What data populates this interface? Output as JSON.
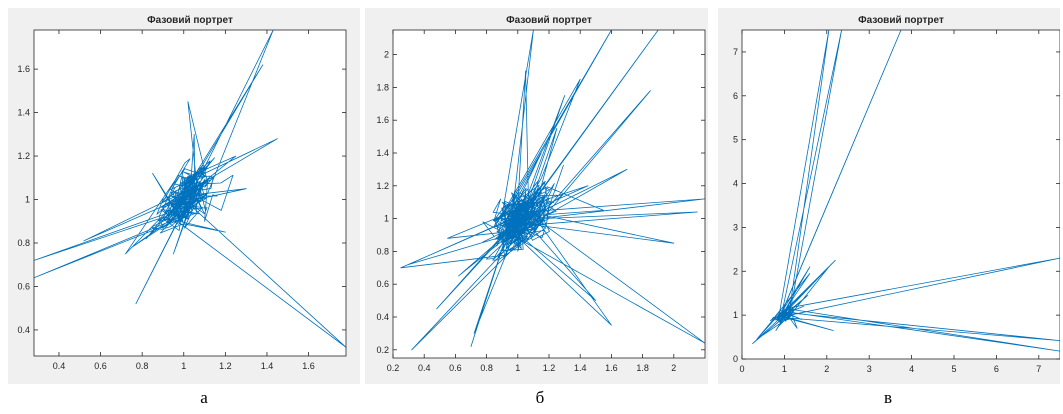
{
  "captions": [
    "а",
    "б",
    "в"
  ],
  "chart_data": [
    {
      "type": "line",
      "title": "Фазовий портрет",
      "xlabel": "",
      "ylabel": "",
      "xlim": [
        0.28,
        1.78
      ],
      "ylim": [
        0.28,
        1.78
      ],
      "xticks": [
        0.4,
        0.6,
        0.8,
        1,
        1.2,
        1.4,
        1.6
      ],
      "xtick_labels": [
        "0.4",
        "0.6",
        "0.8",
        "1",
        "1.2",
        "1.4",
        "1.6"
      ],
      "yticks": [
        0.4,
        0.6,
        0.8,
        1,
        1.2,
        1.4,
        1.6
      ],
      "ytick_labels": [
        "0.4",
        "0.6",
        "0.8",
        "1",
        "1.2",
        "1.4",
        "1.6"
      ],
      "grid": false,
      "line_color": "#0072bd",
      "cluster": {
        "center": [
          1.02,
          1.01
        ],
        "spread": [
          0.11,
          0.1
        ],
        "count": 260,
        "corr": 0.55,
        "seed": 7
      },
      "excursions": [
        [
          0.92,
          0.95
        ],
        [
          1.02,
          1.45
        ],
        [
          1.45,
          1.28
        ],
        [
          1.3,
          1.05
        ],
        [
          1.2,
          0.85
        ],
        [
          0.92,
          0.9
        ],
        [
          0.85,
          1.12
        ],
        [
          1.05,
          1.3
        ],
        [
          1.25,
          1.2
        ],
        [
          1.1,
          0.9
        ],
        [
          0.82,
          0.82
        ],
        [
          0.95,
          0.75
        ],
        [
          1.18,
          0.95
        ],
        [
          1.0,
          1.1
        ],
        [
          0.52,
          0.81
        ],
        [
          0.77,
          0.52
        ],
        [
          0.72,
          0.75
        ],
        [
          0.28,
          0.72
        ],
        [
          0.75,
          0.78
        ],
        [
          1.38,
          1.62
        ],
        [
          1.43,
          1.78
        ],
        [
          1.02,
          1.02
        ],
        [
          0.28,
          0.64
        ],
        [
          1.78,
          0.32
        ],
        [
          0.9,
          1.0
        ]
      ]
    },
    {
      "type": "line",
      "title": "Фазовий портрет",
      "xlabel": "",
      "ylabel": "",
      "xlim": [
        0.2,
        2.2
      ],
      "ylim": [
        0.15,
        2.15
      ],
      "xticks": [
        0.2,
        0.4,
        0.6,
        0.8,
        1,
        1.2,
        1.4,
        1.6,
        1.8,
        2
      ],
      "xtick_labels": [
        "0.2",
        "0.4",
        "0.6",
        "0.8",
        "1",
        "1.2",
        "1.4",
        "1.6",
        "1.8",
        "2"
      ],
      "yticks": [
        0.2,
        0.4,
        0.6,
        0.8,
        1,
        1.2,
        1.4,
        1.6,
        1.8,
        2
      ],
      "ytick_labels": [
        "0.2",
        "0.4",
        "0.6",
        "0.8",
        "1",
        "1.2",
        "1.4",
        "1.6",
        "1.8",
        "2"
      ],
      "grid": false,
      "line_color": "#0072bd",
      "cluster": {
        "center": [
          1.02,
          1.0
        ],
        "spread": [
          0.16,
          0.15
        ],
        "count": 380,
        "corr": 0.6,
        "seed": 11
      },
      "excursions": [
        [
          0.85,
          0.95
        ],
        [
          1.1,
          2.15
        ],
        [
          1.15,
          1.4
        ],
        [
          1.6,
          2.15
        ],
        [
          1.9,
          2.15
        ],
        [
          2.0,
          0.85
        ],
        [
          1.4,
          1.85
        ],
        [
          1.85,
          1.78
        ],
        [
          1.7,
          1.3
        ],
        [
          1.0,
          0.8
        ],
        [
          0.7,
          0.22
        ],
        [
          0.25,
          0.7
        ],
        [
          0.48,
          0.45
        ],
        [
          1.5,
          0.5
        ],
        [
          0.55,
          0.88
        ],
        [
          0.32,
          0.2
        ],
        [
          2.2,
          0.24
        ],
        [
          1.2,
          1.0
        ],
        [
          2.2,
          1.12
        ],
        [
          0.72,
          0.3
        ],
        [
          0.3,
          0.72
        ],
        [
          1.55,
          1.05
        ],
        [
          2.15,
          1.04
        ],
        [
          1.6,
          0.35
        ],
        [
          0.9,
          1.1
        ],
        [
          1.3,
          1.75
        ],
        [
          1.45,
          1.2
        ],
        [
          0.62,
          0.65
        ],
        [
          1.05,
          1.9
        ],
        [
          1.25,
          1.55
        ],
        [
          0.95,
          1.0
        ]
      ]
    },
    {
      "type": "line",
      "title": "Фазовий портрет",
      "xlabel": "",
      "ylabel": "",
      "xlim": [
        0,
        7.5
      ],
      "ylim": [
        0,
        7.5
      ],
      "xticks": [
        0,
        1,
        2,
        3,
        4,
        5,
        6,
        7
      ],
      "xtick_labels": [
        "0",
        "1",
        "2",
        "3",
        "4",
        "5",
        "6",
        "7"
      ],
      "yticks": [
        0,
        1,
        2,
        3,
        4,
        5,
        6,
        7
      ],
      "ytick_labels": [
        "0",
        "1",
        "2",
        "3",
        "4",
        "5",
        "6",
        "7"
      ],
      "grid": false,
      "line_color": "#0072bd",
      "cluster": {
        "center": [
          1.0,
          1.0
        ],
        "spread": [
          0.18,
          0.18
        ],
        "count": 120,
        "corr": 0.7,
        "seed": 3
      },
      "excursions": [
        [
          0.9,
          0.9
        ],
        [
          1.6,
          1.95
        ],
        [
          2.05,
          7.5
        ],
        [
          1.45,
          1.2
        ],
        [
          1.6,
          2.1
        ],
        [
          2.05,
          2.1
        ],
        [
          2.2,
          2.25
        ],
        [
          2.15,
          0.65
        ],
        [
          1.3,
          0.7
        ],
        [
          1.55,
          1.45
        ],
        [
          2.35,
          7.5
        ],
        [
          1.4,
          0.9
        ],
        [
          3.75,
          7.5
        ],
        [
          7.5,
          2.3
        ],
        [
          0.8,
          0.65
        ],
        [
          0.25,
          0.35
        ],
        [
          7.5,
          0.42
        ],
        [
          0.5,
          0.55
        ],
        [
          7.5,
          0.18
        ],
        [
          0.35,
          0.45
        ],
        [
          0.95,
          1.05
        ]
      ]
    }
  ]
}
